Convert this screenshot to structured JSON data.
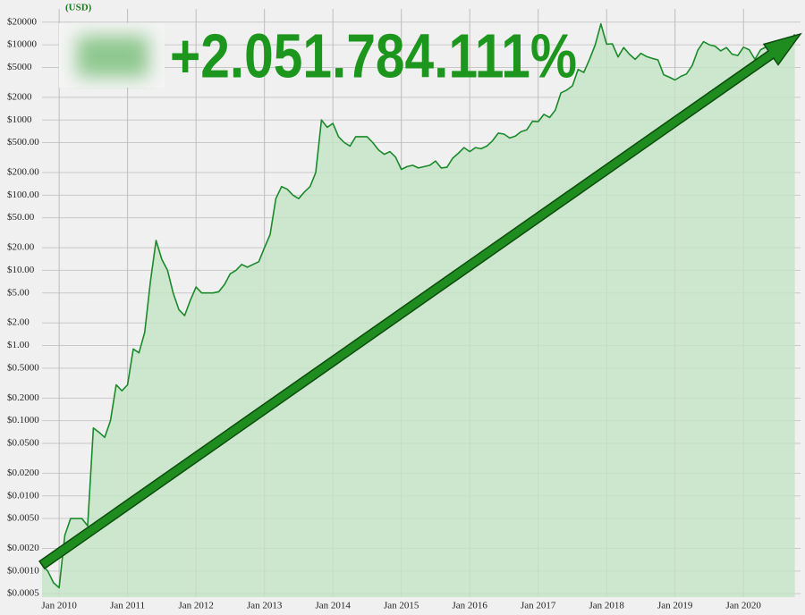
{
  "chart_data": {
    "type": "line",
    "y_axis_label": "(USD)",
    "annotation": "+2.051.784.111%",
    "color": "#1a8a2a",
    "fill_color": "#c4e3c6",
    "log_y": true,
    "grid": true,
    "x": [
      "2009-10",
      "2009-11",
      "2009-12",
      "2010-01",
      "2010-02",
      "2010-03",
      "2010-04",
      "2010-05",
      "2010-06",
      "2010-07",
      "2010-08",
      "2010-09",
      "2010-10",
      "2010-11",
      "2010-12",
      "2011-01",
      "2011-02",
      "2011-03",
      "2011-04",
      "2011-05",
      "2011-06",
      "2011-07",
      "2011-08",
      "2011-09",
      "2011-10",
      "2011-11",
      "2011-12",
      "2012-01",
      "2012-02",
      "2012-03",
      "2012-04",
      "2012-05",
      "2012-06",
      "2012-07",
      "2012-08",
      "2012-09",
      "2012-10",
      "2012-11",
      "2012-12",
      "2013-01",
      "2013-02",
      "2013-03",
      "2013-04",
      "2013-05",
      "2013-06",
      "2013-07",
      "2013-08",
      "2013-09",
      "2013-10",
      "2013-11",
      "2013-12",
      "2014-01",
      "2014-02",
      "2014-03",
      "2014-04",
      "2014-05",
      "2014-06",
      "2014-07",
      "2014-08",
      "2014-09",
      "2014-10",
      "2014-11",
      "2014-12",
      "2015-01",
      "2015-02",
      "2015-03",
      "2015-04",
      "2015-05",
      "2015-06",
      "2015-07",
      "2015-08",
      "2015-09",
      "2015-10",
      "2015-11",
      "2015-12",
      "2016-01",
      "2016-02",
      "2016-03",
      "2016-04",
      "2016-05",
      "2016-06",
      "2016-07",
      "2016-08",
      "2016-09",
      "2016-10",
      "2016-11",
      "2016-12",
      "2017-01",
      "2017-02",
      "2017-03",
      "2017-04",
      "2017-05",
      "2017-06",
      "2017-07",
      "2017-08",
      "2017-09",
      "2017-10",
      "2017-11",
      "2017-12",
      "2018-01",
      "2018-02",
      "2018-03",
      "2018-04",
      "2018-05",
      "2018-06",
      "2018-07",
      "2018-08",
      "2018-09",
      "2018-10",
      "2018-11",
      "2018-12",
      "2019-01",
      "2019-02",
      "2019-03",
      "2019-04",
      "2019-05",
      "2019-06",
      "2019-07",
      "2019-08",
      "2019-09",
      "2019-10",
      "2019-11",
      "2019-12",
      "2020-01",
      "2020-02",
      "2020-03",
      "2020-04",
      "2020-05",
      "2020-06",
      "2020-07",
      "2020-08",
      "2020-09",
      "2020-10"
    ],
    "values": [
      0.0012,
      0.001,
      0.0007,
      0.0006,
      0.003,
      0.005,
      0.005,
      0.005,
      0.004,
      0.08,
      0.07,
      0.06,
      0.1,
      0.3,
      0.25,
      0.3,
      0.9,
      0.8,
      1.5,
      7,
      25,
      14,
      10,
      5,
      3,
      2.5,
      4,
      6,
      5,
      5,
      5,
      5.2,
      6.5,
      9,
      10,
      12,
      11,
      12,
      13,
      20,
      30,
      90,
      130,
      120,
      100,
      90,
      110,
      130,
      200,
      1000,
      800,
      900,
      600,
      500,
      450,
      600,
      600,
      600,
      500,
      400,
      350,
      380,
      320,
      220,
      240,
      250,
      230,
      240,
      250,
      285,
      230,
      235,
      310,
      360,
      430,
      380,
      430,
      415,
      450,
      530,
      670,
      650,
      575,
      610,
      700,
      740,
      960,
      950,
      1190,
      1080,
      1350,
      2300,
      2500,
      2850,
      4700,
      4300,
      6400,
      10000,
      19000,
      10200,
      10300,
      6900,
      9200,
      7500,
      6400,
      7700,
      7000,
      6600,
      6300,
      4000,
      3700,
      3400,
      3800,
      4100,
      5300,
      8500,
      11000,
      10000,
      9600,
      8300,
      9200,
      7500,
      7200,
      9300,
      8600,
      6400,
      8600,
      9400,
      9100,
      11300,
      11700,
      10800,
      13800
    ],
    "xlim": [
      "2009-10",
      "2020-11"
    ],
    "xticks": [
      {
        "value": "2010-01",
        "label": "Jan 2010"
      },
      {
        "value": "2011-01",
        "label": "Jan 2011"
      },
      {
        "value": "2012-01",
        "label": "Jan 2012"
      },
      {
        "value": "2013-01",
        "label": "Jan 2013"
      },
      {
        "value": "2014-01",
        "label": "Jan 2014"
      },
      {
        "value": "2015-01",
        "label": "Jan 2015"
      },
      {
        "value": "2016-01",
        "label": "Jan 2016"
      },
      {
        "value": "2017-01",
        "label": "Jan 2017"
      },
      {
        "value": "2018-01",
        "label": "Jan 2018"
      },
      {
        "value": "2019-01",
        "label": "Jan 2019"
      },
      {
        "value": "2020-01",
        "label": "Jan 2020"
      }
    ],
    "ylim": [
      0.00045,
      30000
    ],
    "yticks": [
      {
        "value": 20000,
        "label": "$20000"
      },
      {
        "value": 10000,
        "label": "$10000"
      },
      {
        "value": 5000,
        "label": "$5000"
      },
      {
        "value": 2000,
        "label": "$2000"
      },
      {
        "value": 1000,
        "label": "$1000"
      },
      {
        "value": 500,
        "label": "$500.00"
      },
      {
        "value": 200,
        "label": "$200.00"
      },
      {
        "value": 100,
        "label": "$100.00"
      },
      {
        "value": 50,
        "label": "$50.00"
      },
      {
        "value": 20,
        "label": "$20.00"
      },
      {
        "value": 10,
        "label": "$10.00"
      },
      {
        "value": 5,
        "label": "$5.00"
      },
      {
        "value": 2,
        "label": "$2.00"
      },
      {
        "value": 1,
        "label": "$1.00"
      },
      {
        "value": 0.5,
        "label": "$0.5000"
      },
      {
        "value": 0.2,
        "label": "$0.2000"
      },
      {
        "value": 0.1,
        "label": "$0.1000"
      },
      {
        "value": 0.05,
        "label": "$0.0500"
      },
      {
        "value": 0.02,
        "label": "$0.0200"
      },
      {
        "value": 0.01,
        "label": "$0.0100"
      },
      {
        "value": 0.005,
        "label": "$0.0050"
      },
      {
        "value": 0.002,
        "label": "$0.0020"
      },
      {
        "value": 0.001,
        "label": "$0.0010"
      },
      {
        "value": 0.0005,
        "label": "$0.0005"
      }
    ]
  }
}
